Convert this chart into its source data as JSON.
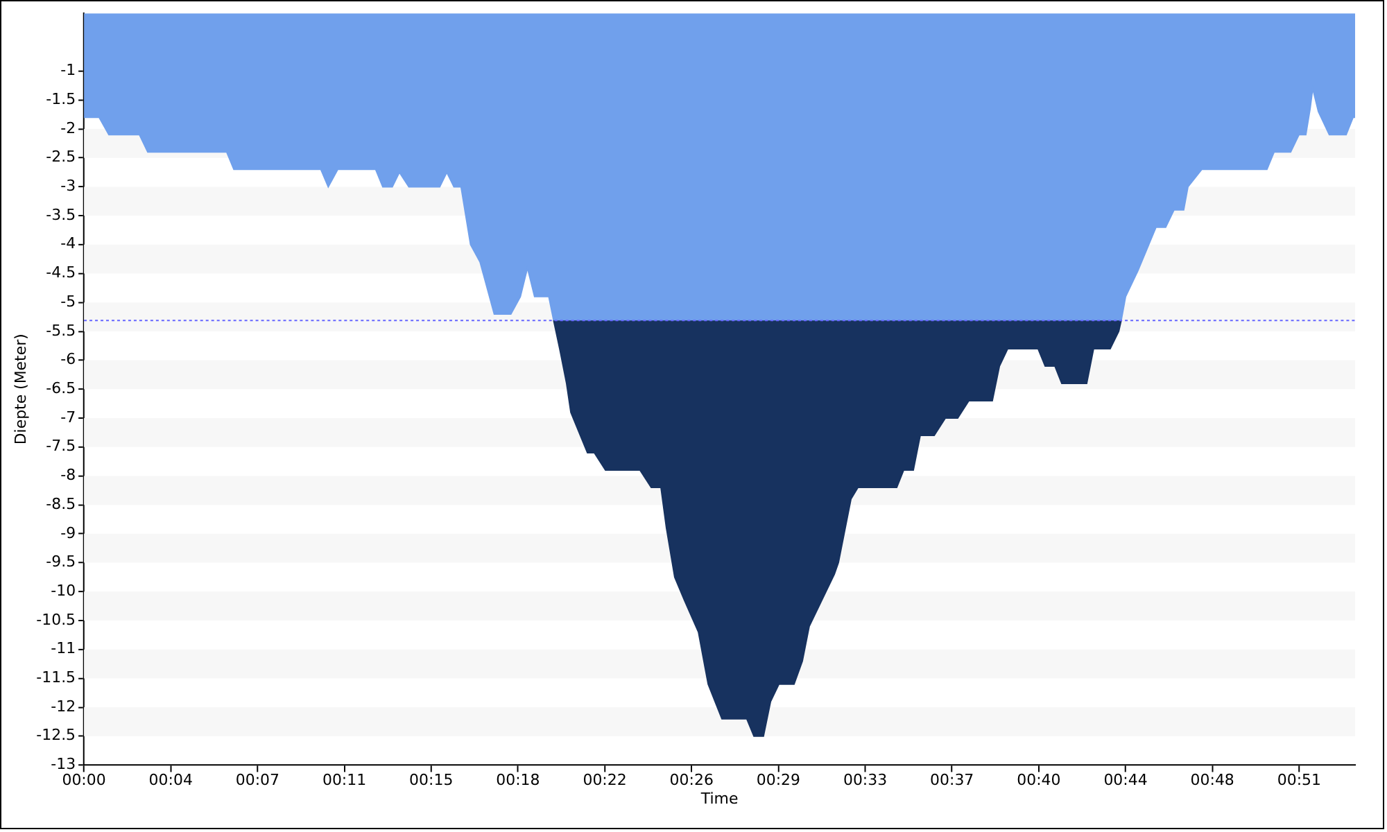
{
  "chart_data": {
    "type": "area",
    "xlabel": "Time",
    "ylabel": "Diepte (Meter)",
    "series": [
      {
        "color": "#70a0ec",
        "x": [
          0,
          0.64,
          1.05,
          2.34,
          2.69,
          6.02,
          6.32,
          9.99,
          10.3,
          10.7,
          12.3,
          12.6,
          13.0,
          13.3,
          13.7,
          15.0,
          15.3,
          15.6,
          15.9,
          16.3,
          16.7,
          16.9,
          17.3,
          18.0,
          18.4,
          18.7,
          19.0,
          19.6,
          19.8,
          43.74,
          43.92,
          44.44,
          45.2,
          45.61,
          45.96,
          46.37,
          46.55,
          47.13,
          49.88,
          50.18,
          50.88,
          51.23,
          51.52,
          51.7,
          51.81,
          52.05,
          52.51,
          53.22,
          53.51,
          53.6
        ],
        "values": [
          -1.8,
          -1.8,
          -2.1,
          -2.1,
          -2.4,
          -2.4,
          -2.7,
          -2.7,
          -3.0,
          -2.7,
          -2.7,
          -3.0,
          -3.0,
          -2.75,
          -3.0,
          -3.0,
          -2.75,
          -3.0,
          -3.0,
          -4.0,
          -4.3,
          -4.6,
          -5.2,
          -5.2,
          -4.9,
          -4.4,
          -4.9,
          -4.9,
          -5.3,
          -5.3,
          -4.9,
          -4.45,
          -3.7,
          -3.7,
          -3.4,
          -3.4,
          -3.0,
          -2.7,
          -2.7,
          -2.4,
          -2.4,
          -2.1,
          -2.1,
          -1.65,
          -1.3,
          -1.7,
          -2.1,
          -2.1,
          -1.8,
          -1.8
        ]
      },
      {
        "color": "#17325f",
        "x": [
          19.8,
          20.06,
          20.35,
          20.53,
          21.23,
          21.52,
          21.99,
          23.45,
          23.92,
          24.33,
          24.56,
          24.91,
          25.32,
          25.91,
          26.32,
          26.9,
          27.95,
          28.25,
          28.65,
          28.95,
          29.3,
          29.94,
          30.29,
          30.58,
          31.64,
          31.81,
          32.34,
          32.63,
          34.27,
          34.56,
          34.97,
          35.26,
          35.85,
          36.32,
          36.84,
          37.31,
          38.3,
          38.6,
          38.95,
          40.23,
          40.53,
          40.94,
          41.23,
          42.28,
          42.57,
          43.27,
          43.63,
          43.74
        ],
        "values": [
          -5.3,
          -5.8,
          -6.4,
          -6.9,
          -7.6,
          -7.6,
          -7.9,
          -7.9,
          -8.2,
          -8.2,
          -8.9,
          -9.75,
          -10.15,
          -10.7,
          -11.6,
          -12.2,
          -12.2,
          -12.5,
          -12.5,
          -11.9,
          -11.6,
          -11.6,
          -11.2,
          -10.6,
          -9.7,
          -9.5,
          -8.4,
          -8.2,
          -8.2,
          -7.9,
          -7.9,
          -7.3,
          -7.3,
          -7.0,
          -7.0,
          -6.7,
          -6.7,
          -6.1,
          -5.8,
          -5.8,
          -6.1,
          -6.1,
          -6.4,
          -6.4,
          -5.8,
          -5.8,
          -5.5,
          -5.3
        ]
      }
    ],
    "xlim": [
      0,
      53.6
    ],
    "xticks": [
      {
        "value": 0,
        "label": "00:00"
      },
      {
        "value": 3.66,
        "label": "00:04"
      },
      {
        "value": 7.32,
        "label": "00:07"
      },
      {
        "value": 10.98,
        "label": "00:11"
      },
      {
        "value": 14.64,
        "label": "00:15"
      },
      {
        "value": 18.3,
        "label": "00:18"
      },
      {
        "value": 21.96,
        "label": "00:22"
      },
      {
        "value": 25.62,
        "label": "00:26"
      },
      {
        "value": 29.28,
        "label": "00:29"
      },
      {
        "value": 32.94,
        "label": "00:33"
      },
      {
        "value": 36.6,
        "label": "00:37"
      },
      {
        "value": 40.26,
        "label": "00:40"
      },
      {
        "value": 43.92,
        "label": "00:44"
      },
      {
        "value": 47.58,
        "label": "00:48"
      },
      {
        "value": 51.24,
        "label": "00:51"
      }
    ],
    "ylim": [
      -13,
      0
    ],
    "yticks": [
      -1,
      -1.5,
      -2,
      -2.5,
      -3,
      -3.5,
      -4,
      -4.5,
      -5,
      -5.5,
      -6,
      -6.5,
      -7,
      -7.5,
      -8,
      -8.5,
      -9,
      -9.5,
      -10,
      -10.5,
      -11,
      -11.5,
      -12,
      -12.5,
      -13
    ],
    "ref_lines": [
      {
        "axis": "y",
        "value": -5.3,
        "color": "#6666ff",
        "line_style": "dotted"
      }
    ],
    "bands": [
      {
        "axis": "y",
        "from": -2,
        "to": -2.5,
        "color": "#f7f7f7"
      },
      {
        "axis": "y",
        "from": -3,
        "to": -3.5,
        "color": "#f7f7f7"
      },
      {
        "axis": "y",
        "from": -4,
        "to": -4.5,
        "color": "#f7f7f7"
      },
      {
        "axis": "y",
        "from": -5,
        "to": -5.5,
        "color": "#f7f7f7"
      },
      {
        "axis": "y",
        "from": -6,
        "to": -6.5,
        "color": "#f7f7f7"
      },
      {
        "axis": "y",
        "from": -7,
        "to": -7.5,
        "color": "#f7f7f7"
      },
      {
        "axis": "y",
        "from": -8,
        "to": -8.5,
        "color": "#f7f7f7"
      },
      {
        "axis": "y",
        "from": -9,
        "to": -9.5,
        "color": "#f7f7f7"
      },
      {
        "axis": "y",
        "from": -10,
        "to": -10.5,
        "color": "#f7f7f7"
      },
      {
        "axis": "y",
        "from": -11,
        "to": -11.5,
        "color": "#f7f7f7"
      },
      {
        "axis": "y",
        "from": -12,
        "to": -12.5,
        "color": "#f7f7f7"
      }
    ]
  }
}
